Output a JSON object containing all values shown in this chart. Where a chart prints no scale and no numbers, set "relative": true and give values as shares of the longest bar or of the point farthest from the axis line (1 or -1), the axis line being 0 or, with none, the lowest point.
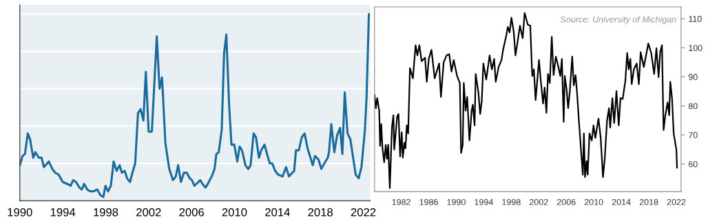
{
  "chart_data": [
    {
      "type": "line",
      "relative": true,
      "grid": "y",
      "xlim": [
        1990,
        2022.65
      ],
      "xticks": [
        1990,
        1994,
        1998,
        2002,
        2006,
        2010,
        2014,
        2018,
        2022
      ],
      "series": [
        {
          "color": "#1a6a9a",
          "x": [
            1990.0,
            1990.26,
            1990.48,
            1990.74,
            1990.95,
            1991.25,
            1991.45,
            1991.77,
            1992.03,
            1992.25,
            1992.7,
            1993.03,
            1993.29,
            1993.61,
            1994.0,
            1994.41,
            1994.74,
            1994.97,
            1995.23,
            1995.56,
            1995.77,
            1995.99,
            1996.27,
            1996.53,
            1996.85,
            1997.22,
            1997.5,
            1997.78,
            1997.98,
            1998.22,
            1998.48,
            1998.74,
            1999.02,
            1999.3,
            1999.51,
            1999.77,
            1999.99,
            2000.27,
            2000.49,
            2000.75,
            2001.01,
            2001.25,
            2001.51,
            2001.74,
            2002.0,
            2002.3,
            2002.76,
            2003.02,
            2003.25,
            2003.56,
            2003.92,
            2004.27,
            2004.53,
            2004.75,
            2005.01,
            2005.29,
            2005.55,
            2005.83,
            2006.04,
            2006.26,
            2006.63,
            2006.8,
            2007.02,
            2007.3,
            2007.51,
            2007.88,
            2008.14,
            2008.31,
            2008.53,
            2008.81,
            2009.03,
            2009.24,
            2009.5,
            2009.72,
            2009.98,
            2010.26,
            2010.48,
            2010.7,
            2011.02,
            2011.28,
            2011.5,
            2011.78,
            2012.0,
            2012.28,
            2012.49,
            2012.8,
            2013.03,
            2013.29,
            2013.51,
            2013.79,
            2014.05,
            2014.48,
            2014.81,
            2015.07,
            2015.56,
            2015.73,
            2015.99,
            2016.27,
            2016.53,
            2016.81,
            2017.29,
            2017.5,
            2017.83,
            2018.09,
            2018.37,
            2018.69,
            2018.8,
            2019.02,
            2019.3,
            2019.56,
            2019.84,
            2020.05,
            2020.27,
            2020.53,
            2020.79,
            2021.29,
            2021.57,
            2021.83,
            2022.15,
            2022.3,
            2022.52
          ],
          "values": [
            0.19,
            0.24,
            0.25,
            0.36,
            0.33,
            0.23,
            0.26,
            0.23,
            0.23,
            0.18,
            0.21,
            0.17,
            0.15,
            0.14,
            0.1,
            0.09,
            0.08,
            0.11,
            0.1,
            0.07,
            0.06,
            0.09,
            0.06,
            0.05,
            0.05,
            0.06,
            0.03,
            0.02,
            0.08,
            0.05,
            0.08,
            0.21,
            0.16,
            0.19,
            0.15,
            0.16,
            0.12,
            0.1,
            0.15,
            0.2,
            0.47,
            0.49,
            0.43,
            0.69,
            0.37,
            0.37,
            0.88,
            0.6,
            0.66,
            0.31,
            0.17,
            0.11,
            0.13,
            0.19,
            0.1,
            0.15,
            0.15,
            0.12,
            0.11,
            0.08,
            0.1,
            0.11,
            0.09,
            0.07,
            0.09,
            0.13,
            0.17,
            0.25,
            0.26,
            0.38,
            0.79,
            0.89,
            0.51,
            0.3,
            0.3,
            0.21,
            0.29,
            0.27,
            0.19,
            0.17,
            0.19,
            0.36,
            0.34,
            0.23,
            0.27,
            0.3,
            0.25,
            0.2,
            0.2,
            0.16,
            0.14,
            0.13,
            0.18,
            0.13,
            0.16,
            0.27,
            0.27,
            0.34,
            0.36,
            0.28,
            0.19,
            0.24,
            0.22,
            0.17,
            0.2,
            0.23,
            0.26,
            0.41,
            0.26,
            0.35,
            0.39,
            0.25,
            0.58,
            0.36,
            0.33,
            0.14,
            0.12,
            0.18,
            0.38,
            0.55,
            1.0
          ]
        }
      ]
    },
    {
      "type": "line",
      "grid": false,
      "xlim": [
        1978.12,
        2022.69
      ],
      "xticks": [
        1982,
        1986,
        1990,
        1994,
        1998,
        2002,
        2006,
        2010,
        2014,
        2018,
        2022
      ],
      "ylim": [
        50.5,
        114.1
      ],
      "yticks": [
        60,
        70,
        80,
        90,
        100,
        110
      ],
      "annotations": [
        "Source: University of Michigan"
      ],
      "series": [
        {
          "color": "#000000",
          "x": [
            1978.12,
            1978.31,
            1978.51,
            1978.8,
            1978.93,
            1979.1,
            1979.26,
            1979.52,
            1979.75,
            1979.94,
            1980.11,
            1980.34,
            1980.66,
            1980.86,
            1980.99,
            1981.22,
            1981.41,
            1981.61,
            1981.84,
            1982.07,
            1982.23,
            1982.46,
            1982.62,
            1982.81,
            1983.01,
            1983.27,
            1983.7,
            1984.09,
            1984.35,
            1984.64,
            1984.97,
            1985.46,
            1985.72,
            1986.01,
            1986.4,
            1986.86,
            1987.51,
            1987.77,
            1988.17,
            1988.59,
            1988.98,
            1989.31,
            1989.63,
            1990.12,
            1990.52,
            1990.71,
            1990.94,
            1991.1,
            1991.36,
            1991.59,
            1991.92,
            1992.24,
            1992.41,
            1992.67,
            1992.83,
            1993.22,
            1993.48,
            1993.71,
            1993.94,
            1994.36,
            1994.85,
            1995.18,
            1995.51,
            1995.74,
            1996.16,
            1996.58,
            1996.81,
            1997.3,
            1997.5,
            1997.76,
            1998.02,
            1998.35,
            1998.61,
            1998.87,
            1999.26,
            1999.66,
            1999.94,
            2000.4,
            2000.76,
            2001.05,
            2001.28,
            2001.54,
            2002.03,
            2002.26,
            2002.62,
            2002.85,
            2003.11,
            2003.34,
            2003.6,
            2003.89,
            2004.15,
            2004.48,
            2004.81,
            2005.13,
            2005.36,
            2005.62,
            2005.78,
            2006.05,
            2006.27,
            2006.5,
            2006.86,
            2007.09,
            2007.35,
            2007.58,
            2007.81,
            2008.23,
            2008.4,
            2008.56,
            2008.72,
            2008.95,
            2009.11,
            2009.37,
            2009.7,
            2009.96,
            2010.22,
            2010.68,
            2011.0,
            2011.33,
            2011.59,
            2011.92,
            2012.21,
            2012.38,
            2012.7,
            2012.96,
            2013.29,
            2013.62,
            2013.88,
            2014.2,
            2014.59,
            2014.85,
            2015.08,
            2015.31,
            2015.51,
            2015.83,
            2016.23,
            2016.55,
            2016.81,
            2017.27,
            2017.6,
            2017.92,
            2018.35,
            2018.77,
            2019.1,
            2019.42,
            2019.65,
            2019.91,
            2020.14,
            2020.4,
            2020.73,
            2020.96,
            2021.12,
            2021.38,
            2021.61,
            2021.84,
            2022.0,
            2022.1
          ],
          "values": [
            83.9,
            79.2,
            82.7,
            78.4,
            66.2,
            73.7,
            65.8,
            60.6,
            66.6,
            61.8,
            66.6,
            51.7,
            72.9,
            76.8,
            65.0,
            71.3,
            76.4,
            77.2,
            62.6,
            70.9,
            62.2,
            67.3,
            65.4,
            73.3,
            70.5,
            93.0,
            89.5,
            100.9,
            97.4,
            100.9,
            95.4,
            96.6,
            88.3,
            96.2,
            99.3,
            89.5,
            94.6,
            83.1,
            95.0,
            97.4,
            97.8,
            91.8,
            95.8,
            90.3,
            87.9,
            63.8,
            66.6,
            87.9,
            78.4,
            83.1,
            68.1,
            78.4,
            80.4,
            73.3,
            91.0,
            84.7,
            77.2,
            81.6,
            94.6,
            89.1,
            97.4,
            92.6,
            96.2,
            88.3,
            93.4,
            95.8,
            99.3,
            104.5,
            107.2,
            105.3,
            110.4,
            105.7,
            97.4,
            101.3,
            107.6,
            103.3,
            112.0,
            108.0,
            107.6,
            90.3,
            92.6,
            82.0,
            95.8,
            89.5,
            80.8,
            86.3,
            77.6,
            91.0,
            87.9,
            103.8,
            90.6,
            97.0,
            93.8,
            90.3,
            96.2,
            74.5,
            90.3,
            85.5,
            79.2,
            84.7,
            97.0,
            87.1,
            90.6,
            83.9,
            75.6,
            61.8,
            56.3,
            70.5,
            55.5,
            61.0,
            56.3,
            70.5,
            68.1,
            73.3,
            69.0,
            75.6,
            69.0,
            55.5,
            61.8,
            74.9,
            79.2,
            72.5,
            82.7,
            74.1,
            85.1,
            73.3,
            82.7,
            82.4,
            88.7,
            98.2,
            92.6,
            96.2,
            87.5,
            92.6,
            94.6,
            87.5,
            98.5,
            93.4,
            97.4,
            101.5,
            98.2,
            91.0,
            99.9,
            89.9,
            98.5,
            100.9,
            71.7,
            76.8,
            81.2,
            76.8,
            88.3,
            82.4,
            70.5,
            67.3,
            65.0,
            58.7
          ]
        }
      ]
    }
  ]
}
